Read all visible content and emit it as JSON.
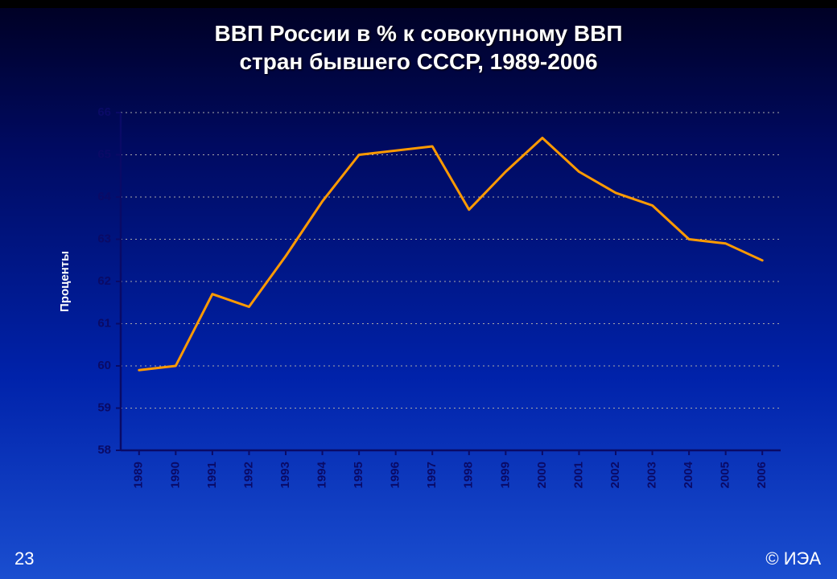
{
  "title": "ВВП России в % к совокупному ВВП\nстран бывшего СССР, 1989-2006",
  "page_number": "23",
  "copyright": "© ИЭА",
  "chart": {
    "type": "line",
    "ylabel": "Проценты",
    "ylim": [
      58,
      66
    ],
    "ytick_step": 1,
    "ytick_labels": [
      "58",
      "59",
      "60",
      "61",
      "62",
      "63",
      "64",
      "65",
      "66"
    ],
    "xtick_labels": [
      "1989",
      "1990",
      "1991",
      "1992",
      "1993",
      "1994",
      "1995",
      "1996",
      "1997",
      "1998",
      "1999",
      "2000",
      "2001",
      "2002",
      "2003",
      "2004",
      "2005",
      "2006"
    ],
    "values": [
      59.9,
      60.0,
      61.7,
      61.4,
      62.6,
      63.9,
      65.0,
      65.1,
      65.2,
      63.7,
      64.6,
      65.4,
      64.6,
      64.1,
      63.8,
      63.0,
      62.9,
      62.5
    ],
    "line_color": "#ff9a00",
    "line_width": 3,
    "axis_color": "#0a0a66",
    "grid_color": "#aaaaaa",
    "plot_bg": "none",
    "tick_label_color": "#0a0a66",
    "ylabel_color": "#ffffff",
    "tick_fontsize": 15,
    "tick_fontweight": "bold",
    "title_fontsize": 28,
    "title_color": "#ffffff",
    "marker": "none",
    "slide_bg_gradient": [
      "#000022",
      "#000a60",
      "#0022aa",
      "#1a4ed0"
    ]
  }
}
